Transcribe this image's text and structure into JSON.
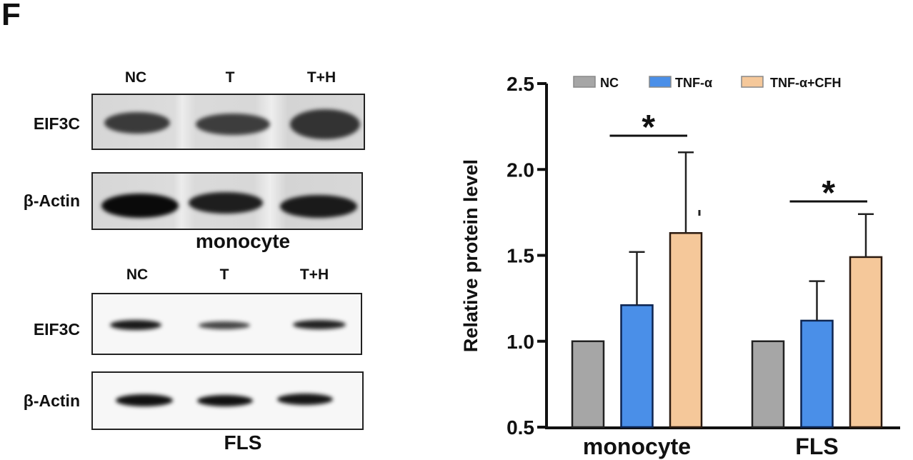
{
  "panel_letter": "F",
  "blots": {
    "monocyte": {
      "lanes": [
        "NC",
        "T",
        "T+H"
      ],
      "rows": [
        "EIF3C",
        "β-Actin"
      ],
      "caption": "monocyte"
    },
    "fls": {
      "lanes": [
        "NC",
        "T",
        "T+H"
      ],
      "rows": [
        "EIF3C",
        "β-Actin"
      ],
      "caption": "FLS"
    }
  },
  "chart_data": {
    "type": "bar",
    "title": "",
    "xlabel": "",
    "ylabel": "Relative protein level",
    "ylim": [
      0.5,
      2.5
    ],
    "yticks": [
      "0.5",
      "1.0",
      "1.5",
      "2.0",
      "2.5"
    ],
    "categories": [
      "monocyte",
      "FLS"
    ],
    "legend_position": "top",
    "grid": false,
    "series": [
      {
        "name": "NC",
        "color": "#a6a6a6",
        "values": [
          1.0,
          1.0
        ],
        "error": [
          0,
          0
        ]
      },
      {
        "name": "TNF-α",
        "color": "#4a8fe8",
        "values": [
          1.21,
          1.12
        ],
        "error": [
          0.31,
          0.23
        ]
      },
      {
        "name": "TNF-α+CFH",
        "color": "#f5c89a",
        "values": [
          1.63,
          1.49
        ],
        "error": [
          0.47,
          0.25
        ]
      }
    ],
    "annotations": [
      {
        "category": "monocyte",
        "between": [
          "TNF-α",
          "TNF-α+CFH"
        ],
        "text": "*"
      },
      {
        "category": "FLS",
        "between": [
          "TNF-α",
          "TNF-α+CFH"
        ],
        "text": "*"
      }
    ]
  }
}
